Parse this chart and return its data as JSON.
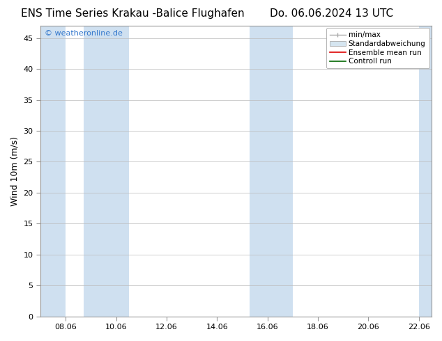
{
  "title_left": "ENS Time Series Krakau -Balice Flughafen",
  "title_right": "Do. 06.06.2024 13 UTC",
  "ylabel": "Wind 10m (m/s)",
  "ylim": [
    0,
    47
  ],
  "yticks": [
    0,
    5,
    10,
    15,
    20,
    25,
    30,
    35,
    40,
    45
  ],
  "xtick_labels": [
    "08.06",
    "10.06",
    "12.06",
    "14.06",
    "16.06",
    "18.06",
    "20.06",
    "22.06"
  ],
  "xtick_positions": [
    8,
    10,
    12,
    14,
    16,
    18,
    20,
    22
  ],
  "xlim": [
    7.0,
    22.5
  ],
  "blue_bands": [
    [
      7.0,
      8.0
    ],
    [
      8.7,
      10.5
    ],
    [
      15.3,
      17.0
    ],
    [
      22.0,
      22.5
    ]
  ],
  "band_color": "#cfe0f0",
  "background_color": "#ffffff",
  "watermark": "© weatheronline.de",
  "watermark_color": "#3377cc",
  "legend_labels": [
    "min/max",
    "Standardabweichung",
    "Ensemble mean run",
    "Controll run"
  ],
  "title_fontsize": 11,
  "axis_fontsize": 9,
  "tick_fontsize": 8,
  "watermark_fontsize": 8,
  "legend_fontsize": 7.5
}
